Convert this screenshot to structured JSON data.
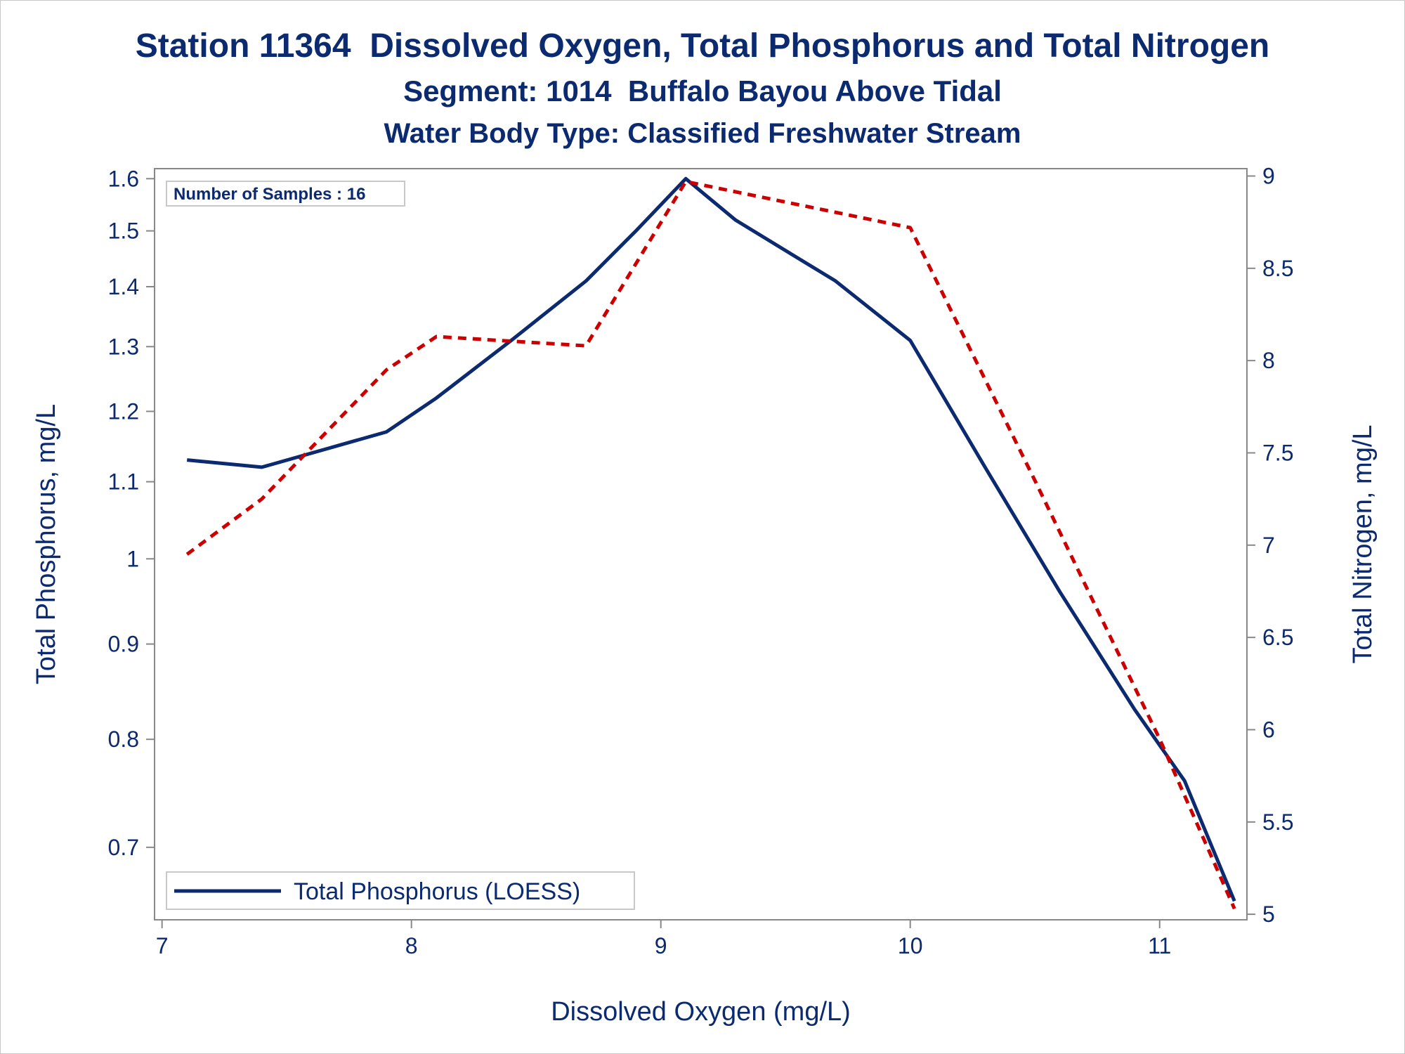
{
  "chart_data": {
    "type": "line",
    "title": "Station 11364  Dissolved Oxygen, Total Phosphorus and Total Nitrogen",
    "subtitle": "Segment: 1014  Buffalo Bayou Above Tidal",
    "subtitle2": "Water Body Type: Classified Freshwater Stream",
    "xlabel": "Dissolved Oxygen (mg/L)",
    "ylabel": "Total Phosphorus, mg/L",
    "y2label": "Total Nitrogen, mg/L",
    "xlim": [
      6.97,
      11.35
    ],
    "ylim": [
      0.64,
      1.62
    ],
    "y_scale": "log",
    "y2lim": [
      4.97,
      9.04
    ],
    "x_ticks": [
      7,
      8,
      9,
      10,
      11
    ],
    "y_ticks": [
      0.7,
      0.8,
      0.9,
      1,
      1.1,
      1.2,
      1.3,
      1.4,
      1.5,
      1.6
    ],
    "y2_ticks": [
      5,
      5.5,
      6,
      6.5,
      7,
      7.5,
      8,
      8.5,
      9
    ],
    "inset_label": "Number of Samples : 16",
    "legend_position": "bottom-left",
    "series": [
      {
        "name": "Total Phosphorus (LOESS)",
        "axis": "left",
        "style": "solid",
        "color": "#0b2a6f",
        "x": [
          7.1,
          7.4,
          7.9,
          8.1,
          8.4,
          8.7,
          8.9,
          9.1,
          9.3,
          9.7,
          10.0,
          10.3,
          10.6,
          10.9,
          11.1,
          11.3
        ],
        "y": [
          1.13,
          1.12,
          1.17,
          1.22,
          1.31,
          1.41,
          1.5,
          1.6,
          1.52,
          1.41,
          1.31,
          1.12,
          0.96,
          0.83,
          0.76,
          0.655
        ]
      },
      {
        "axis": "right",
        "style": "dashed",
        "color": "#cc0000",
        "x": [
          7.1,
          7.4,
          7.9,
          8.1,
          8.7,
          9.1,
          10.0,
          10.5,
          11.0,
          11.3
        ],
        "y": [
          6.95,
          7.25,
          7.95,
          8.13,
          8.08,
          8.97,
          8.72,
          7.35,
          5.95,
          5.03
        ]
      }
    ]
  }
}
